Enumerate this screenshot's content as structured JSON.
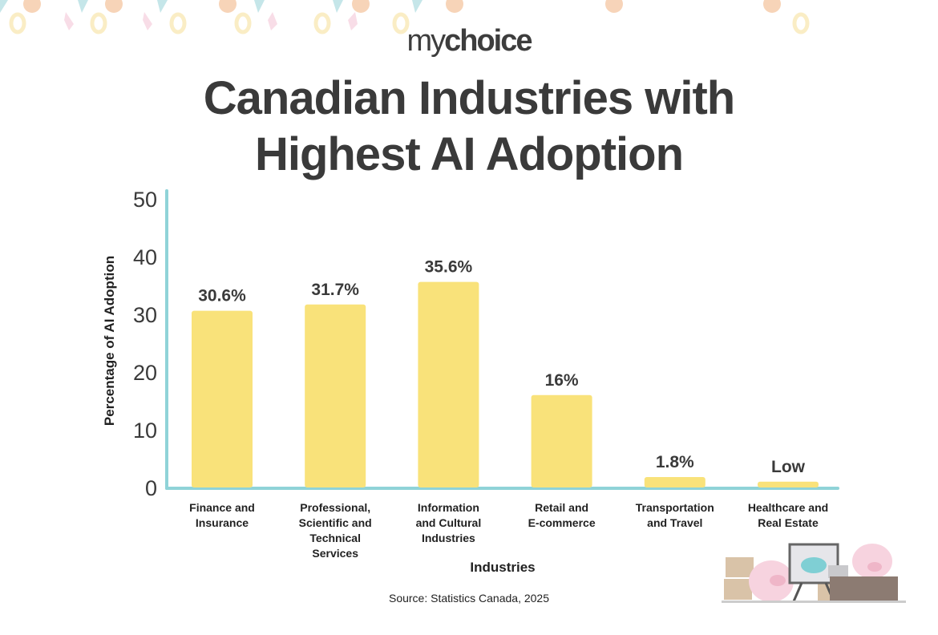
{
  "logo": {
    "part1": "my",
    "part2": "choice"
  },
  "title_line1": "Canadian Industries with",
  "title_line2": "Highest AI Adoption",
  "source": "Source: Statistics Canada, 2025",
  "colors": {
    "bar": "#f9e27a",
    "axis": "#8fd3d8",
    "text": "#3a3a3a"
  },
  "chart_data": {
    "type": "bar",
    "title": "Canadian Industries with Highest AI Adoption",
    "xlabel": "Industries",
    "ylabel": "Percentage of AI Adoption",
    "ylim": [
      0,
      50
    ],
    "yticks": [
      0,
      10,
      20,
      30,
      40,
      50
    ],
    "grid": false,
    "categories": [
      [
        "Finance and",
        "Insurance"
      ],
      [
        "Professional,",
        "Scientific and",
        "Technical",
        "Services"
      ],
      [
        "Information",
        "and Cultural",
        "Industries"
      ],
      [
        "Retail and",
        "E-commerce"
      ],
      [
        "Transportation",
        "and Travel"
      ],
      [
        "Healthcare and",
        "Real Estate"
      ]
    ],
    "values": [
      30.6,
      31.7,
      35.6,
      16,
      1.8,
      1.0
    ],
    "labels": [
      "30.6%",
      "31.7%",
      "35.6%",
      "16%",
      "1.8%",
      "Low"
    ]
  }
}
